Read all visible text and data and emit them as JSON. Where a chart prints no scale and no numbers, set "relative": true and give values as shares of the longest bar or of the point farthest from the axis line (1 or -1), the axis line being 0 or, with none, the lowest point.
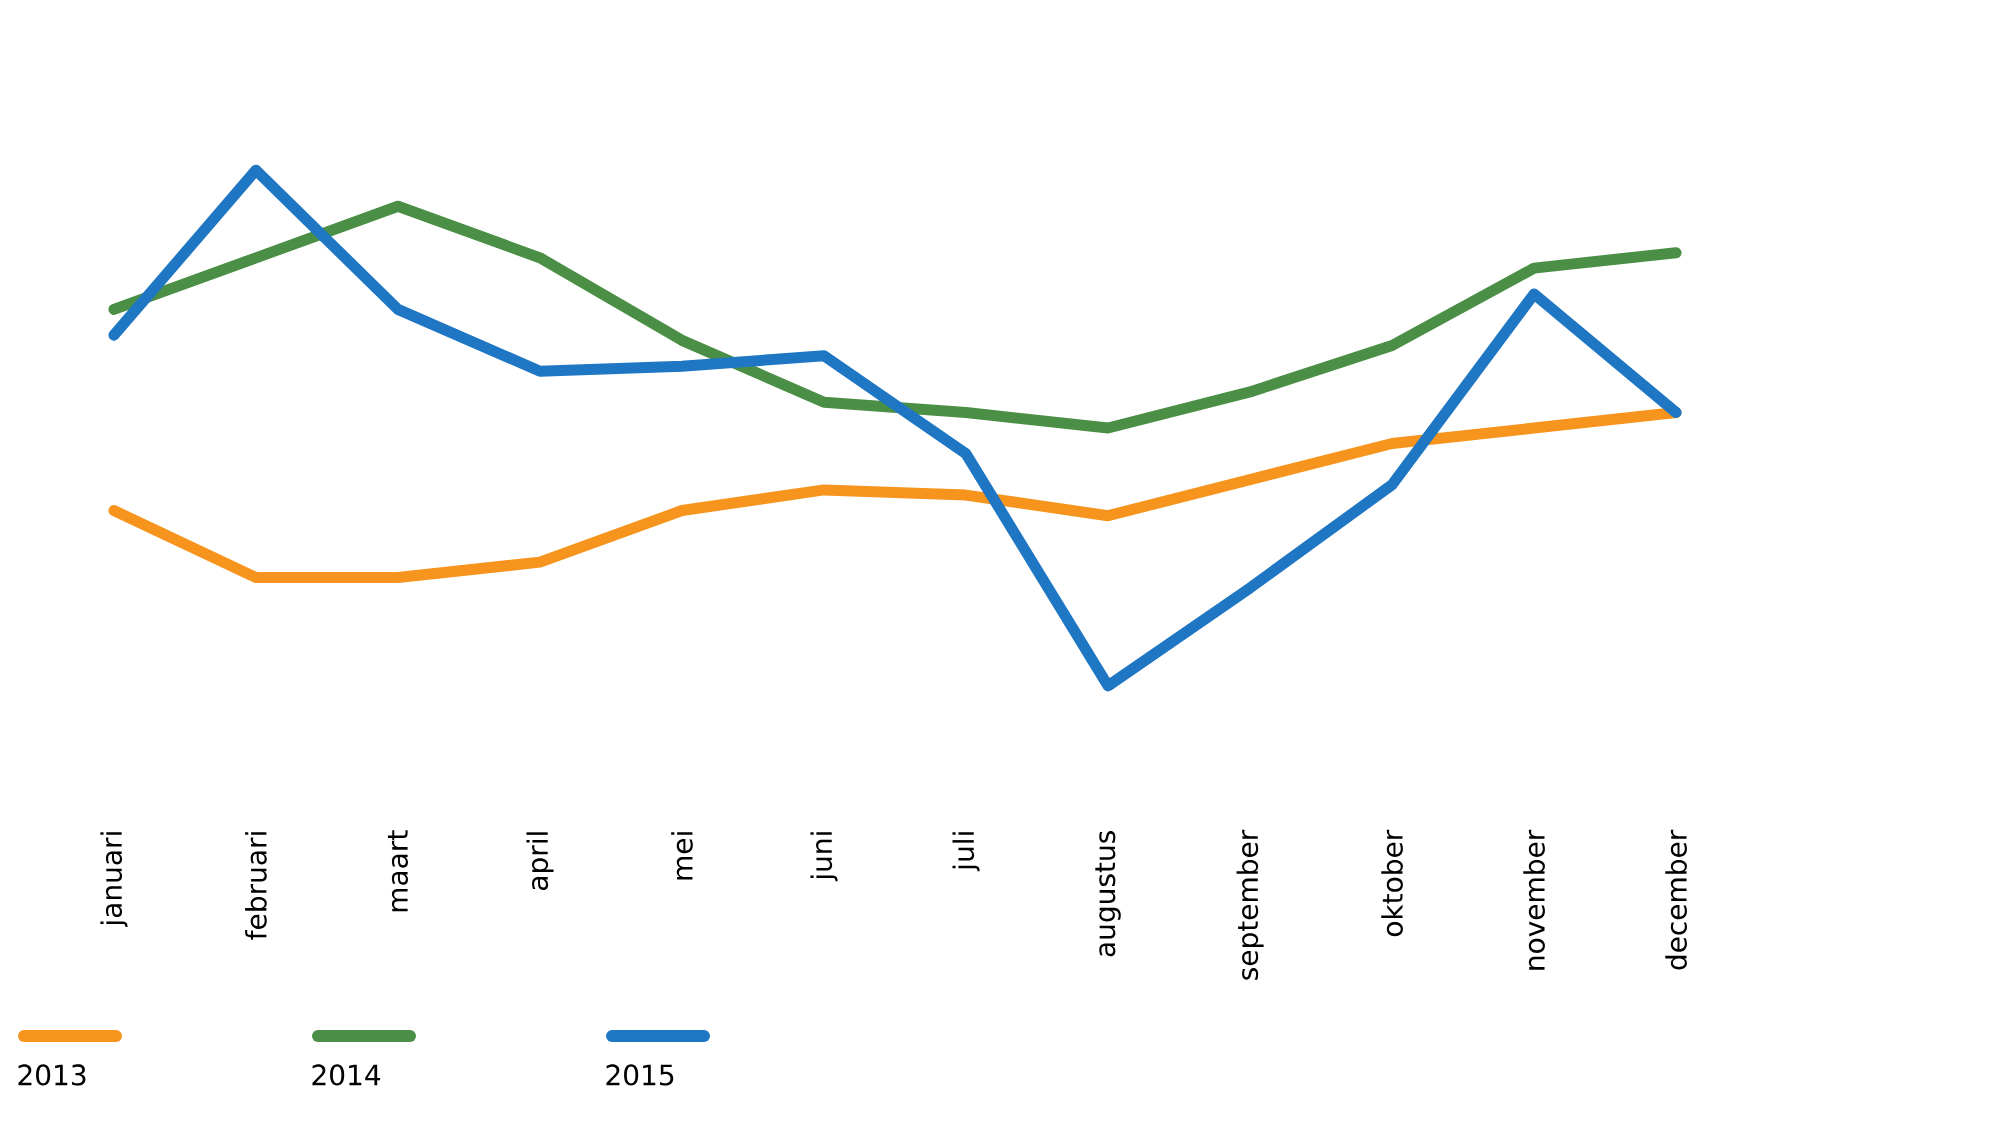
{
  "chart_data": {
    "type": "line",
    "relative": true,
    "legend": "bottom",
    "line_style": "solid",
    "marker": "none",
    "categories": [
      "januari",
      "februari",
      "maart",
      "april",
      "mei",
      "juni",
      "juli",
      "augustus",
      "september",
      "oktober",
      "november",
      "december"
    ],
    "series": [
      {
        "name": "2013",
        "color": "#f7941d",
        "values": [
          0.34,
          0.21,
          0.21,
          0.24,
          0.34,
          0.38,
          0.37,
          0.33,
          0.4,
          0.47,
          0.5,
          0.53
        ]
      },
      {
        "name": "2014",
        "color": "#4a8f45",
        "values": [
          0.73,
          0.83,
          0.93,
          0.83,
          0.67,
          0.55,
          0.53,
          0.5,
          0.57,
          0.66,
          0.81,
          0.84
        ]
      },
      {
        "name": "2015",
        "color": "#1f77c4",
        "values": [
          0.68,
          1,
          0.73,
          0.61,
          0.62,
          0.64,
          0.45,
          0,
          0.19,
          0.39,
          0.76,
          0.53
        ]
      }
    ]
  }
}
